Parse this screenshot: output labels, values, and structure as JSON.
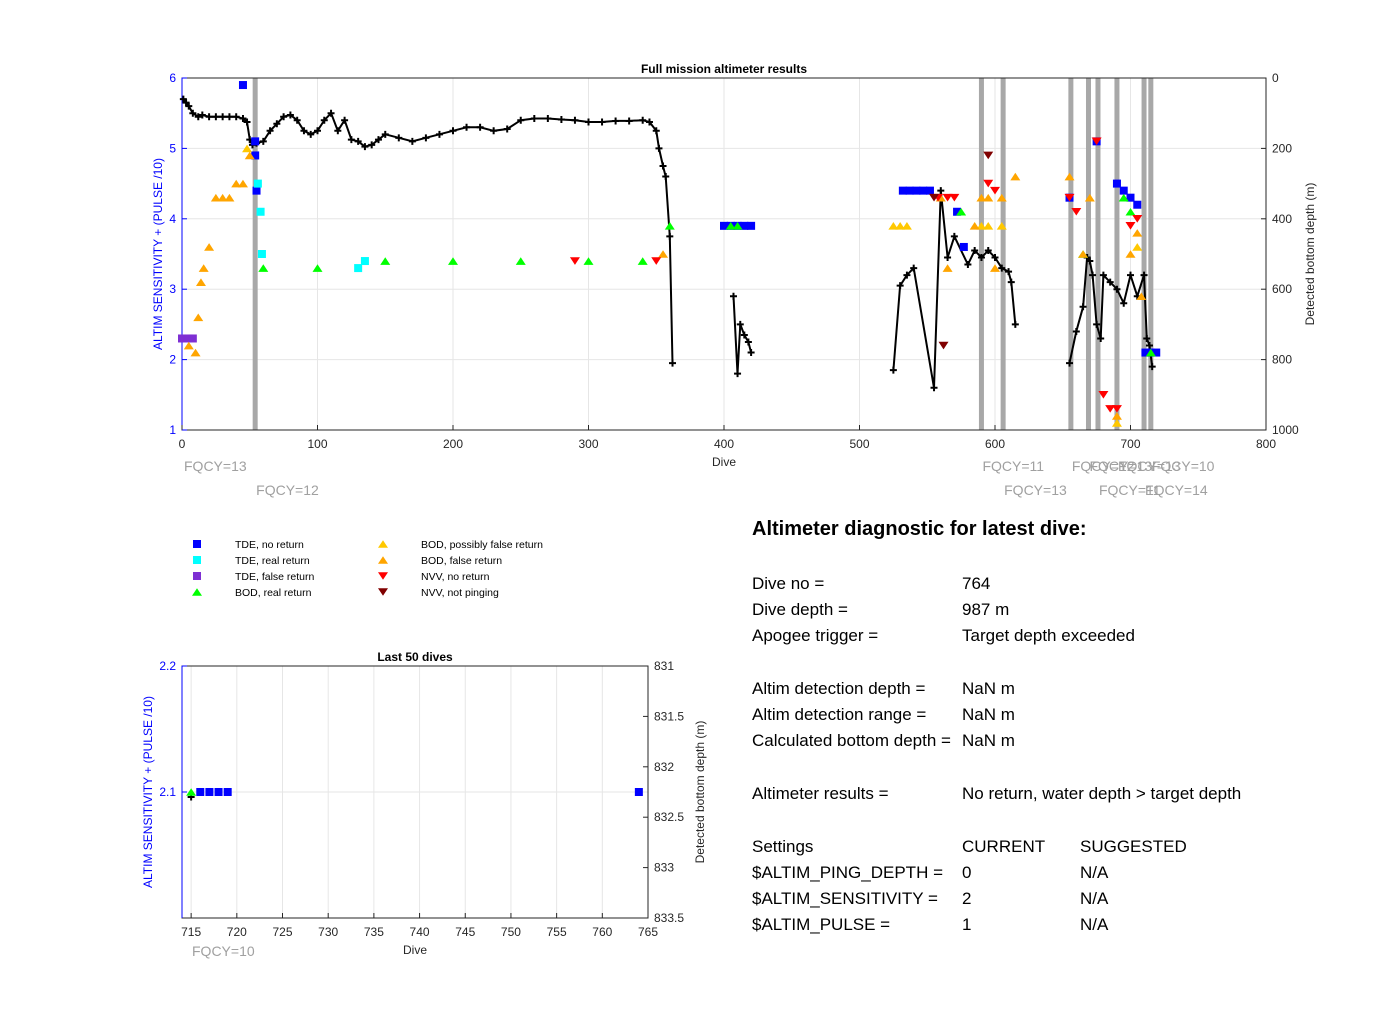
{
  "chart_data": [
    {
      "type": "scatter",
      "title": "Full mission altimeter results",
      "xlabel": "Dive",
      "ylabel": "ALTIM SENSITIVITY + (PULSE /10)",
      "y2label": "Detected bottom depth (m)",
      "xlim": [
        0,
        800
      ],
      "ylim": [
        1,
        6
      ],
      "y2lim": [
        0,
        1000
      ],
      "y2_reversed": true,
      "xticks": [
        "0",
        "100",
        "200",
        "300",
        "400",
        "500",
        "600",
        "700",
        "800"
      ],
      "yticks": [
        "1",
        "2",
        "3",
        "4",
        "5",
        "6"
      ],
      "y2ticks": [
        "0",
        "200",
        "400",
        "600",
        "800",
        "1000"
      ],
      "grid": true,
      "fqcy_lines": [
        {
          "x": 54,
          "label": "FQCY=12"
        },
        {
          "x": 590,
          "label": "FQCY=11"
        },
        {
          "x": 606,
          "label": "FQCY=13"
        },
        {
          "x": 656,
          "label": "FQCY=12"
        },
        {
          "x": 669,
          "label": "FQCY=13"
        },
        {
          "x": 676,
          "label": "FQCY=11"
        },
        {
          "x": 690,
          "label": "FQCY=13"
        },
        {
          "x": 710,
          "label": "FQCY=14"
        },
        {
          "x": 715,
          "label": "FQCY=10"
        }
      ],
      "fqcy_start_label": "FQCY=13",
      "series": [
        {
          "name": "TDE, no return",
          "marker": "square",
          "color": "#0000ff",
          "x": [
            45,
            54,
            54,
            55,
            400,
            405,
            410,
            415,
            420,
            532,
            537,
            542,
            547,
            552,
            572,
            577,
            655,
            675,
            690,
            695,
            700,
            705,
            711,
            715,
            719
          ],
          "y": [
            5.9,
            5.1,
            4.9,
            4.4,
            3.9,
            3.9,
            3.9,
            3.9,
            3.9,
            4.4,
            4.4,
            4.4,
            4.4,
            4.4,
            4.1,
            3.6,
            4.3,
            5.1,
            4.5,
            4.4,
            4.3,
            4.2,
            2.1,
            2.1,
            2.1
          ]
        },
        {
          "name": "TDE, real return",
          "marker": "square",
          "color": "#00ffff",
          "x": [
            56,
            58,
            59,
            130,
            135
          ],
          "y": [
            4.5,
            4.1,
            3.5,
            3.3,
            3.4
          ]
        },
        {
          "name": "TDE, false return",
          "marker": "square",
          "color": "#7e2fd3",
          "x": [
            0,
            5,
            8
          ],
          "y": [
            2.3,
            2.3,
            2.3
          ]
        },
        {
          "name": "BOD, real return",
          "marker": "triangle-up",
          "color": "#00ff00",
          "x": [
            60,
            100,
            150,
            200,
            250,
            300,
            340,
            360,
            405,
            410,
            575,
            665,
            695,
            700,
            715
          ],
          "y": [
            3.3,
            3.3,
            3.4,
            3.4,
            3.4,
            3.4,
            3.4,
            3.9,
            3.9,
            3.9,
            4.1,
            3.5,
            4.3,
            4.1,
            2.1
          ]
        },
        {
          "name": "BOD, possibly false return",
          "marker": "triangle-up",
          "color": "#ffc800",
          "x": [
            48,
            525,
            530,
            535,
            590,
            595,
            605,
            690,
            705
          ],
          "y": [
            5.0,
            3.9,
            3.9,
            3.9,
            3.9,
            3.9,
            3.9,
            1.1,
            3.6
          ]
        },
        {
          "name": "BOD, false return",
          "marker": "triangle-up",
          "color": "#ffa500",
          "x": [
            5,
            10,
            12,
            14,
            16,
            20,
            25,
            30,
            35,
            40,
            45,
            50,
            355,
            560,
            565,
            585,
            590,
            595,
            600,
            605,
            615,
            655,
            665,
            670,
            690,
            700,
            705,
            708
          ],
          "y": [
            2.2,
            2.1,
            2.6,
            3.1,
            3.3,
            3.6,
            4.3,
            4.3,
            4.3,
            4.5,
            4.5,
            4.9,
            3.5,
            4.3,
            3.3,
            3.9,
            4.3,
            4.3,
            3.3,
            4.3,
            4.6,
            4.6,
            3.5,
            4.3,
            1.2,
            3.5,
            3.8,
            2.9
          ]
        },
        {
          "name": "NVV, no return",
          "marker": "triangle-down",
          "color": "#ff0000",
          "x": [
            290,
            350,
            558,
            565,
            570,
            595,
            600,
            655,
            660,
            675,
            680,
            685,
            690,
            700,
            705
          ],
          "y": [
            3.4,
            3.4,
            4.3,
            4.3,
            4.3,
            4.5,
            4.4,
            4.3,
            4.1,
            5.1,
            1.5,
            1.3,
            1.3,
            3.9,
            4.0
          ]
        },
        {
          "name": "NVV, not pinging",
          "marker": "triangle-down",
          "color": "#800000",
          "x": [
            555,
            562,
            595
          ],
          "y": [
            4.3,
            2.2,
            4.9
          ]
        }
      ],
      "depth_series": {
        "name": "Detected bottom depth",
        "marker": "plus",
        "color": "#000000",
        "x": [
          1,
          3,
          5,
          8,
          12,
          15,
          20,
          25,
          30,
          35,
          40,
          45,
          48,
          50,
          52,
          55,
          60,
          65,
          70,
          75,
          80,
          85,
          90,
          95,
          100,
          105,
          110,
          115,
          120,
          125,
          130,
          135,
          140,
          145,
          150,
          160,
          170,
          180,
          190,
          200,
          210,
          220,
          230,
          240,
          250,
          260,
          270,
          280,
          290,
          300,
          310,
          320,
          330,
          340,
          345,
          350,
          352,
          355,
          357,
          360,
          362,
          407,
          410,
          412,
          415,
          418,
          420,
          525,
          530,
          535,
          540,
          555,
          560,
          565,
          570,
          580,
          585,
          590,
          595,
          600,
          605,
          610,
          612,
          615,
          655,
          660,
          665,
          668,
          670,
          672,
          675,
          678,
          680,
          685,
          690,
          695,
          700,
          705,
          710,
          712,
          714,
          716
        ],
        "y": [
          60,
          70,
          80,
          100,
          110,
          105,
          110,
          110,
          110,
          110,
          110,
          115,
          125,
          175,
          190,
          185,
          180,
          150,
          130,
          110,
          105,
          120,
          150,
          160,
          150,
          120,
          100,
          150,
          120,
          175,
          180,
          195,
          190,
          175,
          160,
          170,
          180,
          170,
          160,
          150,
          140,
          140,
          150,
          145,
          120,
          115,
          115,
          118,
          120,
          125,
          125,
          122,
          122,
          120,
          125,
          150,
          200,
          250,
          280,
          450,
          810,
          620,
          840,
          700,
          730,
          750,
          780,
          830,
          590,
          560,
          540,
          880,
          320,
          510,
          450,
          530,
          490,
          510,
          490,
          510,
          540,
          550,
          580,
          700,
          810,
          720,
          650,
          510,
          520,
          560,
          700,
          740,
          560,
          580,
          600,
          640,
          560,
          620,
          560,
          740,
          760,
          820
        ]
      }
    },
    {
      "type": "scatter",
      "title": "Last 50 dives",
      "xlabel": "Dive",
      "ylabel": "ALTIM SENSITIVITY + (PULSE /10)",
      "y2label": "Detected bottom depth (m)",
      "xlim": [
        714,
        765
      ],
      "ylim": [
        2,
        2.2
      ],
      "y2lim": [
        831,
        833.5
      ],
      "y2_reversed": true,
      "xticks": [
        "715",
        "720",
        "725",
        "730",
        "735",
        "740",
        "745",
        "750",
        "755",
        "760",
        "765"
      ],
      "yticks": [
        "2.2",
        "2.1"
      ],
      "y2ticks": [
        "831",
        "831.5",
        "832",
        "832.5",
        "833",
        "833.5"
      ],
      "grid": true,
      "fqcy_label": "FQCY=10",
      "series": [
        {
          "name": "TDE, no return",
          "marker": "square",
          "color": "#0000ff",
          "x": [
            716,
            717,
            718,
            719,
            764
          ],
          "y": [
            2.1,
            2.1,
            2.1,
            2.1,
            2.1
          ]
        },
        {
          "name": "BOD, real return",
          "marker": "triangle-up",
          "color": "#00ff00",
          "x": [
            715
          ],
          "y": [
            2.1
          ]
        }
      ],
      "depth_series": {
        "name": "Detected bottom depth",
        "marker": "plus",
        "color": "#000000",
        "x": [
          715
        ],
        "y": [
          832.3
        ]
      }
    }
  ],
  "legend": [
    {
      "label": "TDE, no return",
      "marker": "square",
      "color": "#0000ff"
    },
    {
      "label": "TDE, real return",
      "marker": "square",
      "color": "#00ffff"
    },
    {
      "label": "TDE, false return",
      "marker": "square",
      "color": "#7e2fd3"
    },
    {
      "label": "BOD, real return",
      "marker": "triangle-up",
      "color": "#00ff00"
    },
    {
      "label": "BOD, possibly false return",
      "marker": "triangle-up",
      "color": "#ffc800"
    },
    {
      "label": "BOD, false return",
      "marker": "triangle-up",
      "color": "#ffa500"
    },
    {
      "label": "NVV, no return",
      "marker": "triangle-down",
      "color": "#ff0000"
    },
    {
      "label": "NVV, not pinging",
      "marker": "triangle-down",
      "color": "#800000"
    }
  ],
  "diagnostic": {
    "title": "Altimeter diagnostic for latest dive:",
    "dive_no_label": "Dive no =",
    "dive_no": "764",
    "dive_depth_label": "Dive depth =",
    "dive_depth": "987 m",
    "apogee_label": "Apogee trigger =",
    "apogee": "Target depth exceeded",
    "altim_det_depth_label": "Altim detection depth =",
    "altim_det_depth": "NaN m",
    "altim_det_range_label": "Altim detection range =",
    "altim_det_range": "NaN m",
    "calc_bottom_label": "Calculated bottom depth =",
    "calc_bottom": "NaN m",
    "results_label": "Altimeter results =",
    "results": "No return, water depth > target depth",
    "settings_label": "Settings",
    "current_label": "CURRENT",
    "suggested_label": "SUGGESTED",
    "ping_depth_label": "$ALTIM_PING_DEPTH =",
    "ping_depth_current": "0",
    "ping_depth_suggested": "N/A",
    "sensitivity_label": "$ALTIM_SENSITIVITY =",
    "sensitivity_current": "2",
    "sensitivity_suggested": "N/A",
    "pulse_label": "$ALTIM_PULSE =",
    "pulse_current": "1",
    "pulse_suggested": "N/A"
  },
  "colors": {
    "left_axis": "#0000ff",
    "fqcy_line": "#a8a8a8",
    "fqcy_text": "#a0a0a0",
    "grid": "#e6e6e6"
  }
}
